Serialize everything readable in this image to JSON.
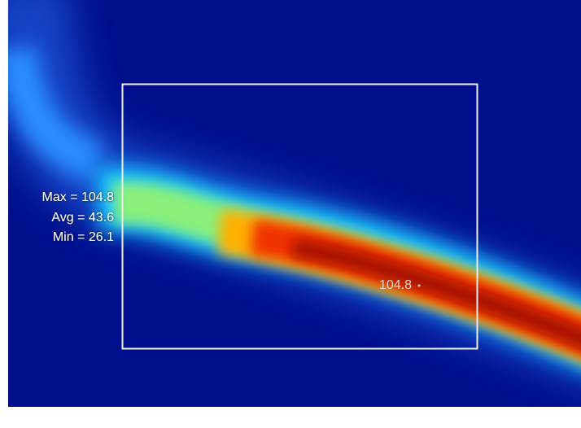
{
  "stats": {
    "lines": [
      "Max = 104.8",
      "Avg = 43.6",
      "Min = 26.1"
    ]
  },
  "hotspot": {
    "label": "104.8"
  }
}
